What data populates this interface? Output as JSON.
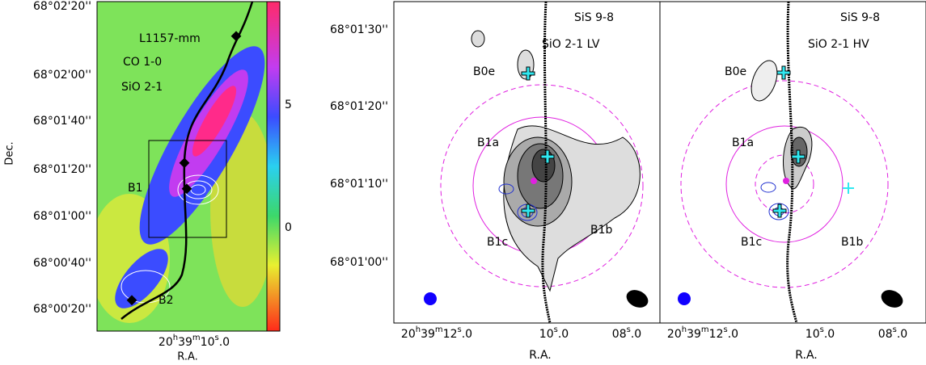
{
  "panel_left": {
    "y_label": "Dec.",
    "yticks": [
      "68°02'20''",
      "68°02'00''",
      "68°01'40''",
      "68°01'20''",
      "68°01'00''",
      "68°00'40''",
      "68°00'20''"
    ],
    "xtick": [
      "20",
      "h",
      "39",
      "m",
      "10",
      "s",
      ".0"
    ],
    "x_label": "R.A.",
    "colorbar_ticks": [
      5,
      0
    ],
    "annotations": {
      "source": "L1157-mm",
      "co": "CO 1-0",
      "sio": "SiO 2-1",
      "b1": "B1",
      "b2": "B2"
    }
  },
  "panel_mid": {
    "line_a": "SiS 9-8",
    "line_b": "SiO 2-1 LV",
    "yticks": [
      "68°01'30''",
      "68°01'20''",
      "68°01'10''",
      "68°01'00''"
    ],
    "xticks": [
      [
        "20",
        "h",
        "39",
        "m",
        "12",
        "s",
        ".0"
      ],
      [
        "10",
        "s",
        ".0"
      ],
      [
        "08",
        "s",
        ".0"
      ]
    ],
    "x_label": "R.A.",
    "sources": {
      "b0e": "B0e",
      "b1a": "B1a",
      "b1b": "B1b",
      "b1c": "B1c"
    }
  },
  "panel_right": {
    "line_a": "SiS 9-8",
    "line_b": "SiO 2-1 HV",
    "xticks": [
      [
        "20",
        "h",
        "39",
        "m",
        "12",
        "s",
        ".0"
      ],
      [
        "10",
        "s",
        ".0"
      ],
      [
        "08",
        "s",
        ".0"
      ]
    ],
    "x_label": "R.A.",
    "sources": {
      "b0e": "B0e",
      "b1a": "B1a",
      "b1b": "B1b",
      "b1c": "B1c"
    }
  }
}
